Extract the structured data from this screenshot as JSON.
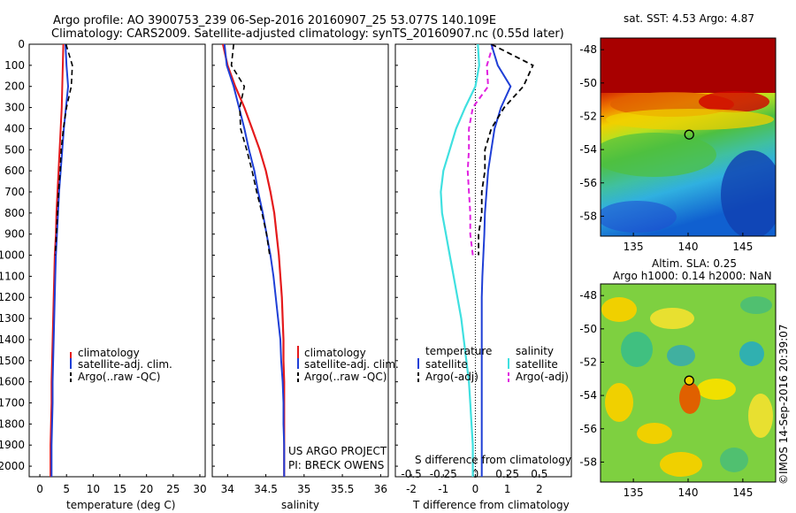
{
  "header": {
    "line1": "Argo profile: AO 3900753_239 06-Sep-2016 20160907_25 53.077S 140.109E",
    "line2": "Climatology: CARS2009. Satellite-adjusted climatology: synTS_20160907.nc (0.55d later)"
  },
  "colors": {
    "climatology": "#e41a1c",
    "satellite": "#1f3fd6",
    "argo": "#000000",
    "salinity_sat": "#3fe0e0",
    "salinity_argo": "#e020e0"
  },
  "depth_ticks": [
    "0",
    "100",
    "200",
    "300",
    "400",
    "500",
    "600",
    "700",
    "800",
    "900",
    "1000",
    "1100",
    "1200",
    "1300",
    "1400",
    "1500",
    "1600",
    "1700",
    "1800",
    "1900",
    "2000"
  ],
  "panels": {
    "temperature": {
      "xlabel": "temperature (deg C)",
      "xticks": [
        "0",
        "5",
        "10",
        "15",
        "20",
        "25",
        "30"
      ],
      "legend": [
        "climatology",
        "satellite-adj. clim.",
        "Argo(..raw -QC)"
      ]
    },
    "salinity": {
      "xlabel": "salinity",
      "xticks": [
        "34",
        "34.5",
        "35",
        "35.5",
        "36"
      ],
      "legend": [
        "climatology",
        "satellite-adj. clim.",
        "Argo(..raw -QC)"
      ],
      "note1": "US ARGO PROJECT",
      "note2": "PI: BRECK OWENS"
    },
    "difference": {
      "xlabel": "T difference from climatology",
      "top_label": "S difference from climatology",
      "xticks_T": [
        "-2",
        "-1",
        "0",
        "1",
        "2"
      ],
      "xticks_S": [
        "-0.5",
        "-0.25",
        "0",
        "0.25",
        "0.5"
      ],
      "legend_t_title": "temperature",
      "legend_s_title": "salinity",
      "legend_t": [
        "satellite",
        "Argo(-adj)"
      ],
      "legend_s": [
        "satellite",
        "Argo(-adj)"
      ]
    },
    "sst_map": {
      "title": "sat. SST: 4.53 Argo: 4.87",
      "yticks": [
        "-48",
        "-50",
        "-52",
        "-54",
        "-56",
        "-58"
      ],
      "xticks": [
        "135",
        "140",
        "145"
      ]
    },
    "sla_map": {
      "title1": "Altim. SLA: 0.25",
      "title2": "Argo h1000: 0.14 h2000: NaN",
      "yticks": [
        "-48",
        "-50",
        "-52",
        "-54",
        "-56",
        "-58"
      ],
      "xticks": [
        "135",
        "140",
        "145"
      ],
      "credit": "©IMOS 14-Sep-2016 20:39:07"
    }
  },
  "chart_data": [
    {
      "type": "line",
      "title": "",
      "xlabel": "temperature (deg C)",
      "ylabel": "",
      "xlim": [
        -2,
        31
      ],
      "ylim": [
        2050,
        0
      ],
      "series": [
        {
          "name": "climatology",
          "x": [
            4.4,
            4.3,
            4.2,
            4.1,
            3.9,
            3.7,
            3.5,
            3.3,
            3.1,
            3.0,
            2.8,
            2.7,
            2.6,
            2.5,
            2.4,
            2.3,
            2.2,
            2.2,
            2.1,
            2.0,
            2.0
          ],
          "y": [
            0,
            100,
            200,
            300,
            400,
            500,
            600,
            700,
            800,
            900,
            1000,
            1100,
            1200,
            1300,
            1400,
            1500,
            1600,
            1700,
            1800,
            1900,
            2050
          ]
        },
        {
          "name": "satellite-adj. clim.",
          "x": [
            4.8,
            5.0,
            5.3,
            4.9,
            4.5,
            4.2,
            3.9,
            3.6,
            3.4,
            3.2,
            3.0,
            2.9,
            2.8,
            2.7,
            2.6,
            2.5,
            2.4,
            2.4,
            2.3,
            2.2,
            2.2
          ],
          "y": [
            0,
            100,
            200,
            300,
            400,
            500,
            600,
            700,
            800,
            900,
            1000,
            1100,
            1200,
            1300,
            1400,
            1500,
            1600,
            1700,
            1800,
            1900,
            2050
          ]
        },
        {
          "name": "Argo(..raw -QC)",
          "x": [
            4.9,
            6.1,
            5.9,
            5.0,
            4.4,
            4.0,
            3.8,
            3.5,
            3.3,
            3.1,
            2.9
          ],
          "y": [
            0,
            100,
            200,
            300,
            400,
            500,
            600,
            700,
            800,
            900,
            1000
          ]
        }
      ]
    },
    {
      "type": "line",
      "title": "",
      "xlabel": "salinity",
      "ylabel": "",
      "xlim": [
        33.8,
        36.1
      ],
      "ylim": [
        2050,
        0
      ],
      "series": [
        {
          "name": "climatology",
          "x": [
            33.94,
            34.0,
            34.1,
            34.22,
            34.32,
            34.42,
            34.5,
            34.56,
            34.61,
            34.64,
            34.67,
            34.69,
            34.71,
            34.72,
            34.73,
            34.73,
            34.74,
            34.74,
            34.74,
            34.74,
            34.74
          ],
          "y": [
            0,
            100,
            200,
            300,
            400,
            500,
            600,
            700,
            800,
            900,
            1000,
            1100,
            1200,
            1300,
            1400,
            1500,
            1600,
            1700,
            1800,
            1900,
            2050
          ]
        },
        {
          "name": "satellite-adj. clim.",
          "x": [
            33.96,
            33.99,
            34.08,
            34.15,
            34.22,
            34.28,
            34.35,
            34.4,
            34.46,
            34.51,
            34.56,
            34.6,
            34.63,
            34.66,
            34.69,
            34.7,
            34.72,
            34.73,
            34.73,
            34.74,
            34.74
          ],
          "y": [
            0,
            100,
            200,
            300,
            400,
            500,
            600,
            700,
            800,
            900,
            1000,
            1100,
            1200,
            1300,
            1400,
            1500,
            1600,
            1700,
            1800,
            1900,
            2050
          ]
        },
        {
          "name": "Argo(..raw -QC)",
          "x": [
            34.08,
            34.05,
            34.22,
            34.16,
            34.17,
            34.25,
            34.32,
            34.38,
            34.45,
            34.51,
            34.55
          ],
          "y": [
            0,
            100,
            200,
            300,
            400,
            500,
            600,
            700,
            800,
            900,
            1000
          ]
        }
      ]
    },
    {
      "type": "line",
      "title": "",
      "xlabel": "T difference from climatology",
      "ylabel": "",
      "xlim": [
        -2.5,
        3.0
      ],
      "ylim": [
        2050,
        0
      ],
      "series": [
        {
          "name": "temperature satellite",
          "x": [
            0.5,
            0.7,
            1.1,
            0.8,
            0.6,
            0.5,
            0.4,
            0.35,
            0.3,
            0.28,
            0.25,
            0.22,
            0.2,
            0.2,
            0.2,
            0.2,
            0.2,
            0.2,
            0.2,
            0.2,
            0.2
          ],
          "y": [
            0,
            100,
            200,
            300,
            400,
            500,
            600,
            700,
            800,
            900,
            1000,
            1100,
            1200,
            1300,
            1400,
            1500,
            1600,
            1700,
            1800,
            1900,
            2050
          ]
        },
        {
          "name": "temperature Argo(-adj)",
          "x": [
            0.5,
            1.8,
            1.5,
            0.9,
            0.5,
            0.3,
            0.3,
            0.2,
            0.2,
            0.1,
            0.1
          ],
          "y": [
            0,
            100,
            200,
            300,
            400,
            500,
            600,
            700,
            800,
            900,
            1000
          ]
        },
        {
          "name": "salinity satellite",
          "x": [
            0.02,
            0.03,
            0.0,
            -0.08,
            -0.15,
            -0.2,
            -0.25,
            -0.27,
            -0.26,
            -0.23,
            -0.2,
            -0.17,
            -0.14,
            -0.11,
            -0.09,
            -0.07,
            -0.05,
            -0.04,
            -0.03,
            -0.02,
            -0.02
          ],
          "y": [
            0,
            100,
            200,
            300,
            400,
            500,
            600,
            700,
            800,
            900,
            1000,
            1100,
            1200,
            1300,
            1400,
            1500,
            1600,
            1700,
            1800,
            1900,
            2050
          ]
        },
        {
          "name": "salinity Argo(-adj)",
          "x": [
            0.14,
            0.09,
            0.1,
            -0.02,
            -0.05,
            -0.05,
            -0.06,
            -0.05,
            -0.04,
            -0.04,
            -0.02
          ],
          "y": [
            0,
            100,
            200,
            300,
            400,
            500,
            600,
            700,
            800,
            900,
            1000
          ]
        }
      ]
    },
    {
      "type": "heatmap",
      "title": "sat. SST: 4.53 Argo: 4.87",
      "xlim": [
        132,
        148
      ],
      "ylim": [
        -59.2,
        -47.3
      ],
      "marker": {
        "lon": 140.1,
        "lat": -53.1
      }
    },
    {
      "type": "heatmap",
      "title": "Altim. SLA: 0.25 / Argo h1000: 0.14 h2000: NaN",
      "xlim": [
        132,
        148
      ],
      "ylim": [
        -59.2,
        -47.3
      ],
      "marker": {
        "lon": 140.1,
        "lat": -53.1
      }
    }
  ]
}
